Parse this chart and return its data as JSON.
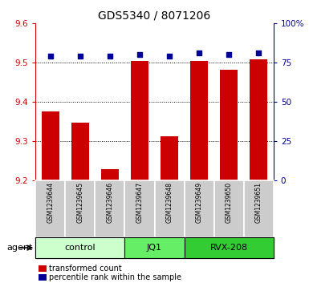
{
  "title": "GDS5340 / 8071206",
  "samples": [
    "GSM1239644",
    "GSM1239645",
    "GSM1239646",
    "GSM1239647",
    "GSM1239648",
    "GSM1239649",
    "GSM1239650",
    "GSM1239651"
  ],
  "bar_values": [
    9.375,
    9.347,
    9.228,
    9.505,
    9.312,
    9.505,
    9.482,
    9.508
  ],
  "percentile_values": [
    79,
    79,
    79,
    80,
    79,
    81,
    80,
    81
  ],
  "ylim_left": [
    9.2,
    9.6
  ],
  "ylim_right": [
    0,
    100
  ],
  "yticks_left": [
    9.2,
    9.3,
    9.4,
    9.5,
    9.6
  ],
  "yticks_right": [
    0,
    25,
    50,
    75,
    100
  ],
  "bar_color": "#cc0000",
  "square_color": "#000099",
  "bar_width": 0.6,
  "groups": [
    {
      "label": "control",
      "samples": [
        0,
        1,
        2
      ],
      "color": "#ccffcc"
    },
    {
      "label": "JQ1",
      "samples": [
        3,
        4
      ],
      "color": "#66ee66"
    },
    {
      "label": "RVX-208",
      "samples": [
        5,
        6,
        7
      ],
      "color": "#33cc33"
    }
  ],
  "agent_label": "agent",
  "legend_items": [
    {
      "label": "transformed count",
      "color": "#cc0000"
    },
    {
      "label": "percentile rank within the sample",
      "color": "#000099"
    }
  ],
  "sample_box_color": "#cccccc",
  "tick_color_left": "#cc0000",
  "tick_color_right": "#000099",
  "grid_dotted_at": [
    9.3,
    9.4,
    9.5
  ]
}
